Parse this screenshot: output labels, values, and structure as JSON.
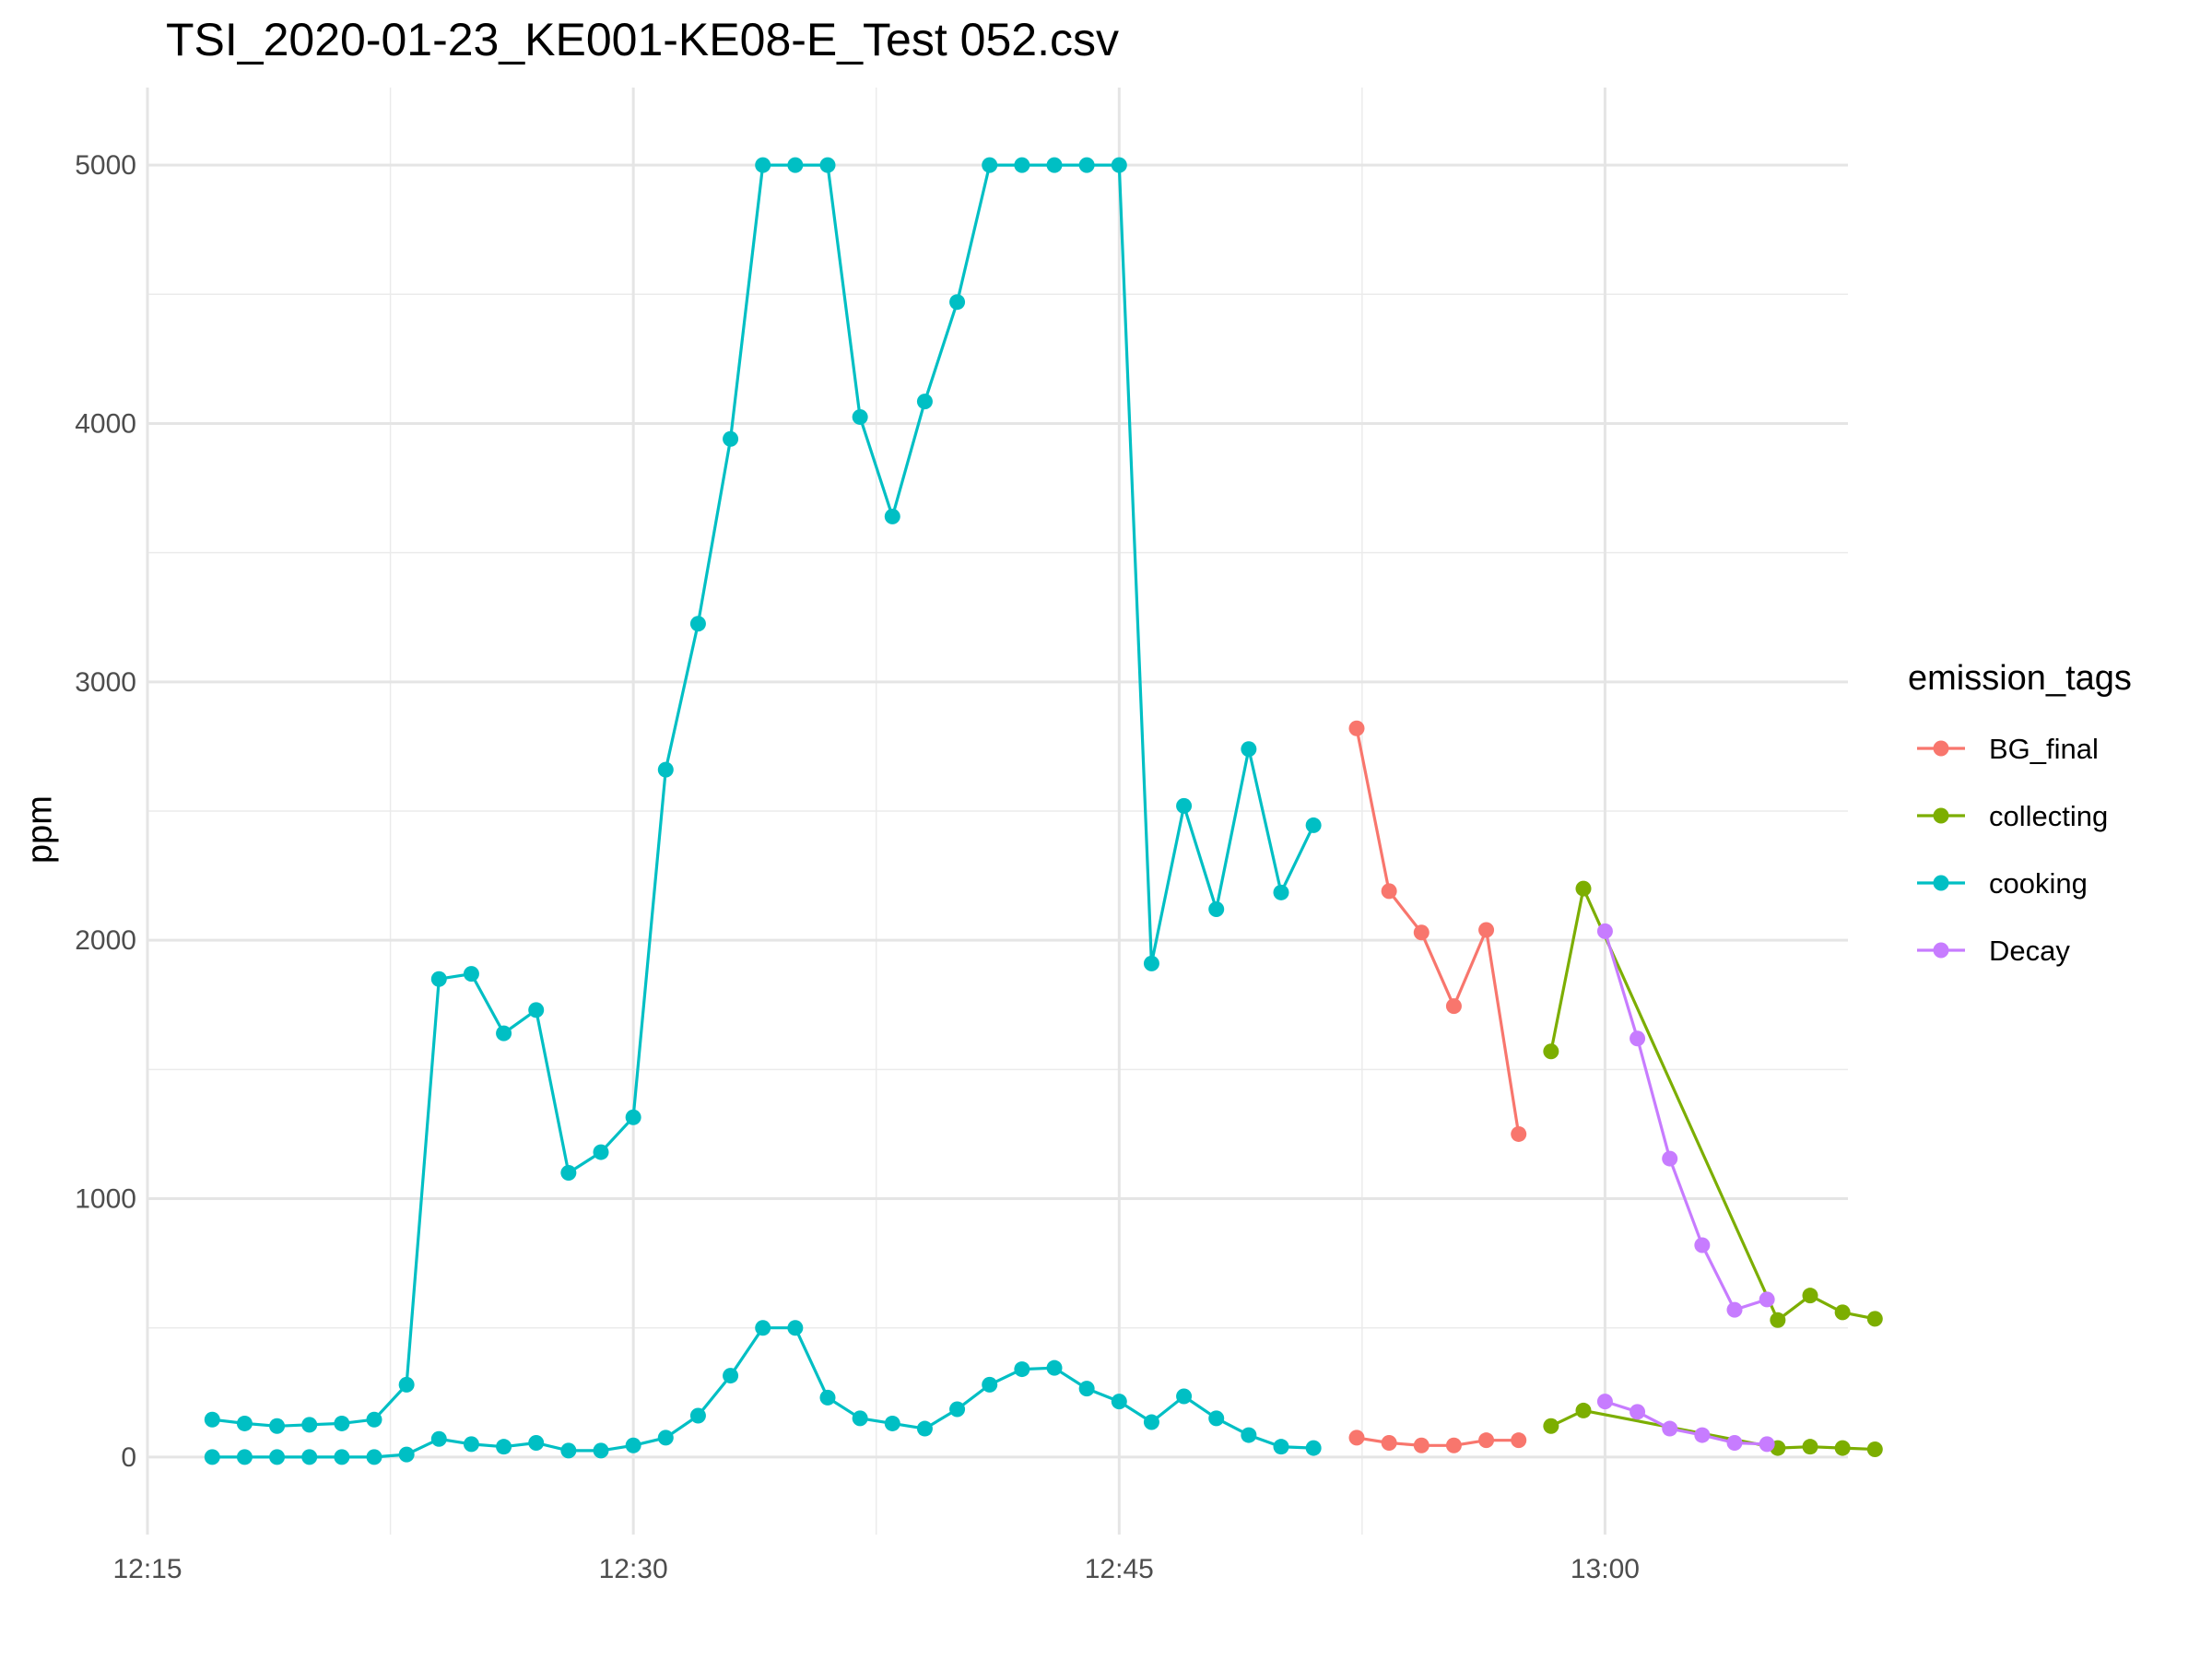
{
  "chart_data": {
    "type": "line",
    "title": "TSI_2020-01-23_KE001-KE08-E_Test 052.csv",
    "xlabel": "",
    "ylabel": "ppm",
    "x_axis_kind": "time",
    "xlim": [
      "12:15",
      "13:07:30"
    ],
    "ylim": [
      -300,
      5300
    ],
    "x_ticks": [
      "12:15",
      "12:30",
      "12:45",
      "13:00"
    ],
    "y_ticks": [
      0,
      1000,
      2000,
      3000,
      4000,
      5000
    ],
    "grid": true,
    "legend": {
      "title": "emission_tags",
      "position": "right"
    },
    "series": [
      {
        "name": "BG_final",
        "color": "#F8766D",
        "lines": [
          {
            "x": [
              "12:52:20",
              "12:53:20",
              "12:54:20",
              "12:55:20",
              "12:56:20",
              "12:57:20"
            ],
            "y": [
              2820,
              2190,
              2030,
              1745,
              2040,
              1250
            ]
          },
          {
            "x": [
              "12:52:20",
              "12:53:20",
              "12:54:20",
              "12:55:20",
              "12:56:20",
              "12:57:20"
            ],
            "y": [
              75,
              55,
              45,
              45,
              65,
              65
            ]
          }
        ]
      },
      {
        "name": "collecting",
        "color": "#7CAE00",
        "lines": [
          {
            "x": [
              "12:58:20",
              "12:59:20",
              "13:05:20",
              "13:06:20",
              "13:07:20",
              "13:08:20"
            ],
            "y": [
              1570,
              2200,
              530,
              625,
              560,
              535
            ]
          },
          {
            "x": [
              "12:58:20",
              "12:59:20",
              "13:05:20",
              "13:06:20",
              "13:07:20",
              "13:08:20"
            ],
            "y": [
              120,
              180,
              35,
              40,
              35,
              30
            ]
          }
        ]
      },
      {
        "name": "cooking",
        "color": "#00BFC4",
        "lines": [
          {
            "x": [
              "12:17:00",
              "12:18:00",
              "12:19:00",
              "12:20:00",
              "12:21:00",
              "12:22:00",
              "12:23:00",
              "12:24:00",
              "12:25:00",
              "12:26:00",
              "12:27:00",
              "12:28:00",
              "12:29:00",
              "12:30:00",
              "12:31:00",
              "12:32:00",
              "12:33:00",
              "12:34:00",
              "12:35:00",
              "12:36:00",
              "12:37:00",
              "12:38:00",
              "12:39:00",
              "12:40:00",
              "12:41:00",
              "12:42:00",
              "12:43:00",
              "12:44:00",
              "12:45:00",
              "12:46:00",
              "12:47:00",
              "12:48:00",
              "12:49:00",
              "12:50:00",
              "12:51:00"
            ],
            "y": [
              145,
              130,
              120,
              125,
              130,
              145,
              280,
              1850,
              1870,
              1640,
              1730,
              1100,
              1180,
              1315,
              2660,
              3225,
              3940,
              5000,
              5000,
              5000,
              4025,
              3640,
              4085,
              4470,
              5000,
              5000,
              5000,
              5000,
              5000,
              1910,
              2520,
              2120,
              2740,
              2185,
              2445
            ]
          },
          {
            "x": [
              "12:17:00",
              "12:18:00",
              "12:19:00",
              "12:20:00",
              "12:21:00",
              "12:22:00",
              "12:23:00",
              "12:24:00",
              "12:25:00",
              "12:26:00",
              "12:27:00",
              "12:28:00",
              "12:29:00",
              "12:30:00",
              "12:31:00",
              "12:32:00",
              "12:33:00",
              "12:34:00",
              "12:35:00",
              "12:36:00",
              "12:37:00",
              "12:38:00",
              "12:39:00",
              "12:40:00",
              "12:41:00",
              "12:42:00",
              "12:43:00",
              "12:44:00",
              "12:45:00",
              "12:46:00",
              "12:47:00",
              "12:48:00",
              "12:49:00",
              "12:50:00",
              "12:51:00"
            ],
            "y": [
              0,
              0,
              0,
              0,
              0,
              0,
              10,
              70,
              50,
              40,
              55,
              25,
              25,
              45,
              75,
              160,
              315,
              500,
              500,
              230,
              150,
              130,
              110,
              185,
              280,
              340,
              345,
              265,
              215,
              135,
              235,
              150,
              85,
              40,
              35
            ]
          }
        ]
      },
      {
        "name": "Decay",
        "color": "#C77CFF",
        "lines": [
          {
            "x": [
              "13:00:00",
              "13:01:00",
              "13:02:00",
              "13:03:00",
              "13:04:00",
              "13:05:00"
            ],
            "y": [
              2035,
              1620,
              1155,
              820,
              570,
              610
            ]
          },
          {
            "x": [
              "13:00:00",
              "13:01:00",
              "13:02:00",
              "13:03:00",
              "13:04:00",
              "13:05:00"
            ],
            "y": [
              215,
              175,
              110,
              85,
              55,
              50
            ]
          }
        ]
      }
    ]
  }
}
